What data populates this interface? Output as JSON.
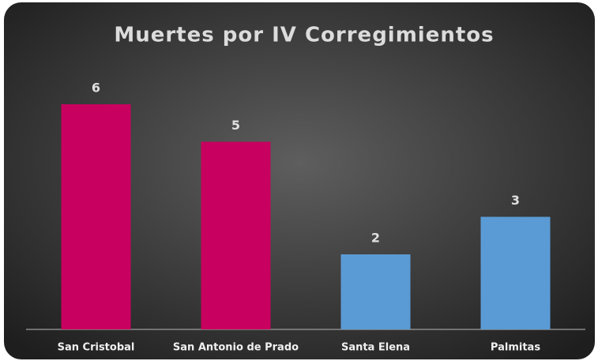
{
  "chart_data": {
    "type": "bar",
    "title": "Muertes por IV Corregimientos",
    "categories": [
      "San Cristobal",
      "San Antonio de Prado",
      "Santa Elena",
      "Palmitas"
    ],
    "values": [
      6,
      5,
      2,
      3
    ],
    "colors": [
      "#c8005f",
      "#c8005f",
      "#5b9bd5",
      "#5b9bd5"
    ]
  }
}
